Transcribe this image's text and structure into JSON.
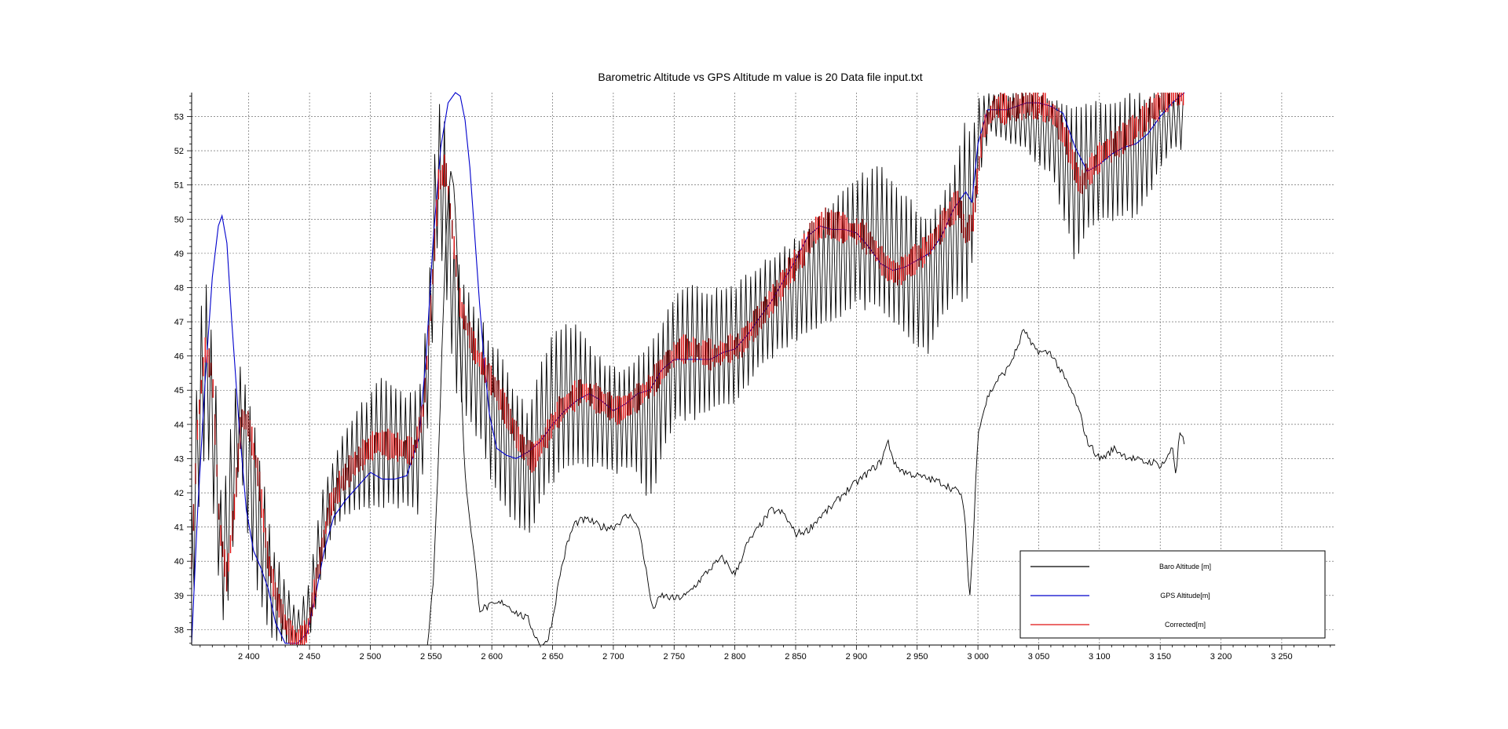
{
  "chart_data": {
    "type": "line",
    "title": "Barometric Altitude vs GPS Altitude m value is 20 Data file input.txt",
    "xlabel": "",
    "ylabel": "",
    "xlim": [
      2353,
      3294
    ],
    "ylim": [
      37.55,
      53.7
    ],
    "grid": true,
    "legend_position": "bottom-right",
    "x_ticks": [
      2400,
      2450,
      2500,
      2550,
      2600,
      2650,
      2700,
      2750,
      2800,
      2850,
      2900,
      2950,
      3000,
      3050,
      3100,
      3150,
      3200,
      3250
    ],
    "x_tick_labels": [
      "2 400",
      "2 450",
      "2 500",
      "2 550",
      "2 600",
      "2 650",
      "2 700",
      "2 750",
      "2 800",
      "2 850",
      "2 900",
      "2 950",
      "3 000",
      "3 050",
      "3 100",
      "3 150",
      "3 200",
      "3 250"
    ],
    "y_ticks": [
      38,
      39,
      40,
      41,
      42,
      43,
      44,
      45,
      46,
      47,
      48,
      49,
      50,
      51,
      52,
      53
    ],
    "y_tick_labels": [
      "38",
      "39",
      "40",
      "41",
      "42",
      "43",
      "44",
      "45",
      "46",
      "47",
      "48",
      "49",
      "50",
      "51",
      "52",
      "53"
    ],
    "series": [
      {
        "name": "Baro Altitude [m]",
        "color": "#000000",
        "style": "noisy-envelope",
        "x": [
          2353,
          2360,
          2365,
          2372,
          2378,
          2385,
          2392,
          2400,
          2410,
          2420,
          2430,
          2440,
          2450,
          2460,
          2470,
          2480,
          2490,
          2500,
          2510,
          2520,
          2530,
          2540,
          2548,
          2555,
          2560,
          2565,
          2570,
          2575,
          2580,
          2590,
          2600,
          2610,
          2620,
          2630,
          2640,
          2650,
          2660,
          2670,
          2680,
          2690,
          2700,
          2710,
          2720,
          2730,
          2740,
          2750,
          2760,
          2780,
          2800,
          2820,
          2840,
          2860,
          2880,
          2900,
          2920,
          2940,
          2960,
          2970,
          2980,
          2985,
          2990,
          2995,
          3000,
          3010,
          3020,
          3040,
          3050,
          3060,
          3070,
          3080,
          3090,
          3100,
          3110,
          3120,
          3130,
          3140,
          3150,
          3160,
          3170
        ],
        "low": [
          37.6,
          42.0,
          43.5,
          41.0,
          38.0,
          39.0,
          43.0,
          40.5,
          38.5,
          37.6,
          37.6,
          37.6,
          37.6,
          39.5,
          41.0,
          41.3,
          41.5,
          41.5,
          41.5,
          41.5,
          41.5,
          41.3,
          44.0,
          49.0,
          48.5,
          46.5,
          45.0,
          44.5,
          44.0,
          43.5,
          42.0,
          41.5,
          41.0,
          40.5,
          41.5,
          42.2,
          42.7,
          42.8,
          42.7,
          42.6,
          42.5,
          42.6,
          42.6,
          41.5,
          43.0,
          44.0,
          44.0,
          44.2,
          44.6,
          45.5,
          46.2,
          46.5,
          47.0,
          47.4,
          47.2,
          46.5,
          46.0,
          47.0,
          47.5,
          47.5,
          47.0,
          48.5,
          51.0,
          52.5,
          52.3,
          52.0,
          51.5,
          51.3,
          50.0,
          48.7,
          49.5,
          49.8,
          49.8,
          50.0,
          50.0,
          50.5,
          51.5,
          52.0,
          52.0
        ],
        "high": [
          42.0,
          47.5,
          48.2,
          46.0,
          41.5,
          44.0,
          46.0,
          45.0,
          43.0,
          40.5,
          39.5,
          38.5,
          39.5,
          42.0,
          43.0,
          44.0,
          44.5,
          45.0,
          45.5,
          45.3,
          45.0,
          45.0,
          48.0,
          53.7,
          53.7,
          51.0,
          49.2,
          48.5,
          48.0,
          47.3,
          46.5,
          46.0,
          45.0,
          44.5,
          46.0,
          46.8,
          47.1,
          47.0,
          46.5,
          46.0,
          45.7,
          45.6,
          46.0,
          46.5,
          47.0,
          47.9,
          48.3,
          48.0,
          48.2,
          48.7,
          49.2,
          49.8,
          50.5,
          51.3,
          51.7,
          50.8,
          50.0,
          50.7,
          51.5,
          52.5,
          53.0,
          52.5,
          53.7,
          53.7,
          53.7,
          53.7,
          53.7,
          53.6,
          53.5,
          53.5,
          53.5,
          53.6,
          53.6,
          53.7,
          53.7,
          53.7,
          53.7,
          53.7,
          53.7
        ]
      },
      {
        "name": "GPS Altitude[m]",
        "color": "#0000cc",
        "style": "smooth",
        "x": [
          2353,
          2358,
          2364,
          2370,
          2375,
          2378,
          2382,
          2386,
          2392,
          2398,
          2404,
          2410,
          2416,
          2422,
          2430,
          2440,
          2448,
          2455,
          2462,
          2470,
          2480,
          2490,
          2500,
          2510,
          2520,
          2530,
          2540,
          2546,
          2552,
          2558,
          2564,
          2570,
          2574,
          2578,
          2582,
          2586,
          2590,
          2594,
          2598,
          2604,
          2612,
          2620,
          2630,
          2640,
          2650,
          2660,
          2670,
          2680,
          2690,
          2700,
          2710,
          2720,
          2730,
          2740,
          2750,
          2760,
          2770,
          2780,
          2790,
          2800,
          2810,
          2820,
          2830,
          2840,
          2850,
          2860,
          2870,
          2880,
          2890,
          2900,
          2910,
          2920,
          2930,
          2940,
          2950,
          2960,
          2970,
          2980,
          2990,
          2995,
          3000,
          3008,
          3016,
          3024,
          3032,
          3040,
          3050,
          3060,
          3070,
          3080,
          3090,
          3100,
          3110,
          3120,
          3130,
          3140,
          3150,
          3160,
          3170
        ],
        "y": [
          37.6,
          41.5,
          45.2,
          48.3,
          49.8,
          50.1,
          49.3,
          47.0,
          44.0,
          41.5,
          40.3,
          39.8,
          39.2,
          38.2,
          37.6,
          37.6,
          37.9,
          39.0,
          40.3,
          41.3,
          41.8,
          42.2,
          42.6,
          42.4,
          42.4,
          42.5,
          43.6,
          46.0,
          49.5,
          52.1,
          53.4,
          53.7,
          53.6,
          52.9,
          51.5,
          49.5,
          47.5,
          45.7,
          44.3,
          43.3,
          43.1,
          43.0,
          43.2,
          43.5,
          44.0,
          44.4,
          44.7,
          44.9,
          44.7,
          44.4,
          44.6,
          44.9,
          45.0,
          45.6,
          45.9,
          45.9,
          45.9,
          45.9,
          46.1,
          46.2,
          46.6,
          47.1,
          47.6,
          48.2,
          48.8,
          49.5,
          49.8,
          49.7,
          49.7,
          49.6,
          49.2,
          48.7,
          48.5,
          48.6,
          48.8,
          49.0,
          49.5,
          50.3,
          50.8,
          50.5,
          52.2,
          53.2,
          53.2,
          53.2,
          53.3,
          53.4,
          53.4,
          53.3,
          53.1,
          52.1,
          51.4,
          51.6,
          51.9,
          52.1,
          52.2,
          52.5,
          53.0,
          53.4,
          53.7
        ]
      },
      {
        "name": "Corrected[m]",
        "color": "#e01010",
        "style": "dashes",
        "x": [
          2353,
          2358,
          2364,
          2370,
          2376,
          2382,
          2388,
          2394,
          2400,
          2408,
          2416,
          2424,
          2432,
          2440,
          2448,
          2456,
          2466,
          2476,
          2486,
          2496,
          2506,
          2516,
          2526,
          2536,
          2544,
          2550,
          2556,
          2562,
          2568,
          2574,
          2580,
          2588,
          2596,
          2604,
          2614,
          2624,
          2634,
          2644,
          2654,
          2664,
          2674,
          2684,
          2694,
          2704,
          2714,
          2724,
          2734,
          2744,
          2754,
          2764,
          2774,
          2784,
          2794,
          2804,
          2814,
          2824,
          2834,
          2844,
          2854,
          2864,
          2874,
          2884,
          2894,
          2904,
          2914,
          2924,
          2934,
          2944,
          2954,
          2964,
          2974,
          2984,
          2990,
          2996,
          3004,
          3014,
          3024,
          3034,
          3044,
          3054,
          3064,
          3074,
          3084,
          3094,
          3104,
          3114,
          3124,
          3134,
          3144,
          3154,
          3164,
          3170
        ],
        "y": [
          40.0,
          44.0,
          46.2,
          45.5,
          41.0,
          39.5,
          41.5,
          44.2,
          44.0,
          42.5,
          40.0,
          38.8,
          38.0,
          37.7,
          37.9,
          39.5,
          41.5,
          42.3,
          42.8,
          43.2,
          43.5,
          43.4,
          43.3,
          43.2,
          44.5,
          47.5,
          51.0,
          51.5,
          49.5,
          47.5,
          46.8,
          46.0,
          45.5,
          45.0,
          44.2,
          43.4,
          43.0,
          43.6,
          44.3,
          44.7,
          45.0,
          44.8,
          44.6,
          44.4,
          44.6,
          44.9,
          45.3,
          45.8,
          46.2,
          46.2,
          46.1,
          46.0,
          46.2,
          46.3,
          46.8,
          47.3,
          47.8,
          48.4,
          48.9,
          49.6,
          49.9,
          49.8,
          49.7,
          49.6,
          49.2,
          48.6,
          48.4,
          48.7,
          49.0,
          49.4,
          50.0,
          50.5,
          49.5,
          50.0,
          52.6,
          53.3,
          53.2,
          53.3,
          53.4,
          53.3,
          53.0,
          52.2,
          51.0,
          51.5,
          52.0,
          52.2,
          52.5,
          52.8,
          53.2,
          53.5,
          53.7,
          53.7
        ]
      },
      {
        "name": "",
        "color": "#000000",
        "style": "thin-noisy",
        "x": [
          2547,
          2552,
          2556,
          2560,
          2563,
          2566,
          2569,
          2572,
          2575,
          2578,
          2582,
          2586,
          2590,
          2600,
          2610,
          2620,
          2630,
          2636,
          2640,
          2645,
          2650,
          2656,
          2662,
          2668,
          2674,
          2680,
          2690,
          2700,
          2710,
          2716,
          2722,
          2728,
          2732,
          2736,
          2740,
          2750,
          2760,
          2770,
          2780,
          2790,
          2800,
          2810,
          2820,
          2830,
          2840,
          2850,
          2860,
          2870,
          2880,
          2890,
          2900,
          2910,
          2920,
          2926,
          2932,
          2940,
          2950,
          2960,
          2970,
          2980,
          2986,
          2990,
          2993,
          2996,
          3000,
          3008,
          3016,
          3024,
          3032,
          3038,
          3044,
          3052,
          3060,
          3066,
          3072,
          3078,
          3084,
          3090,
          3096,
          3100,
          3106,
          3112,
          3120,
          3128,
          3136,
          3144,
          3150,
          3156,
          3160,
          3163,
          3166,
          3170
        ],
        "y": [
          37.55,
          39.5,
          43.0,
          47.2,
          50.0,
          51.5,
          51.0,
          48.5,
          45.0,
          42.5,
          41.2,
          40.0,
          38.6,
          38.7,
          38.8,
          38.5,
          38.3,
          37.8,
          37.55,
          37.6,
          38.3,
          39.6,
          40.5,
          41.1,
          41.2,
          41.2,
          41.0,
          41.0,
          41.3,
          41.3,
          40.8,
          39.5,
          38.6,
          38.8,
          39.0,
          38.9,
          39.0,
          39.4,
          39.8,
          40.1,
          39.6,
          40.5,
          41.0,
          41.5,
          41.4,
          40.8,
          40.9,
          41.3,
          41.6,
          42.0,
          42.3,
          42.6,
          42.9,
          43.5,
          42.8,
          42.6,
          42.5,
          42.4,
          42.3,
          42.1,
          42.0,
          41.0,
          38.8,
          40.5,
          43.8,
          44.8,
          45.3,
          45.6,
          46.2,
          46.8,
          46.3,
          46.1,
          46.1,
          45.7,
          45.3,
          44.9,
          44.3,
          43.5,
          43.2,
          43.0,
          43.1,
          43.3,
          43.1,
          43.0,
          42.9,
          42.9,
          42.8,
          43.0,
          43.4,
          42.5,
          43.8,
          43.4
        ]
      }
    ]
  }
}
